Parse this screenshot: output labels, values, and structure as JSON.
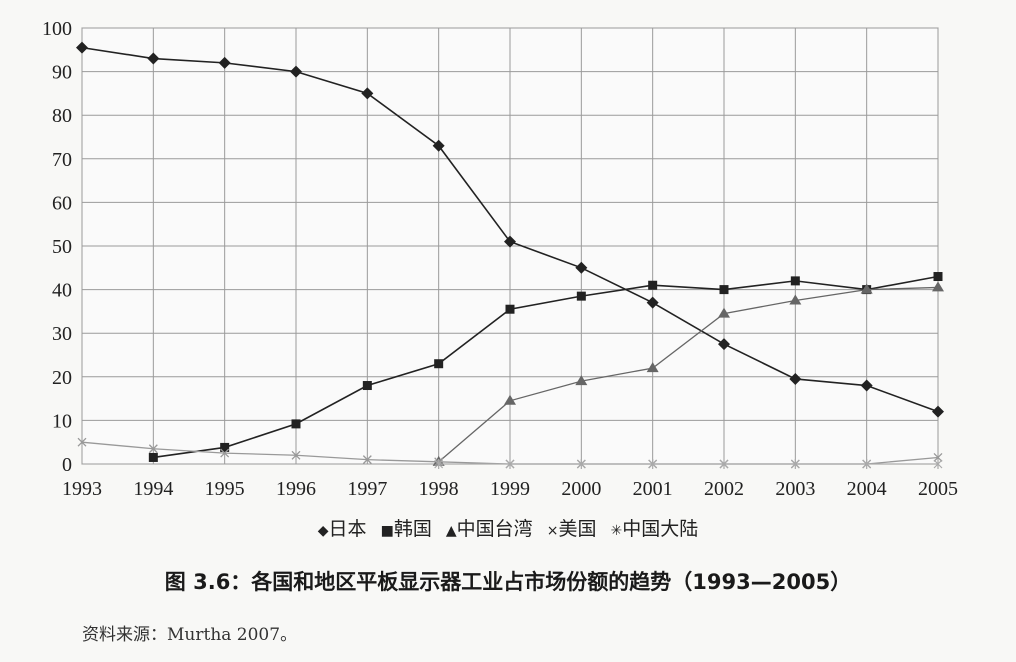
{
  "chart_data": {
    "type": "line",
    "categories": [
      "1993",
      "1994",
      "1995",
      "1996",
      "1997",
      "1998",
      "1999",
      "2000",
      "2001",
      "2002",
      "2003",
      "2004",
      "2005"
    ],
    "ylim": [
      0,
      100
    ],
    "yticks": [
      0,
      10,
      20,
      30,
      40,
      50,
      60,
      70,
      80,
      90,
      100
    ],
    "grid": true,
    "legend_position": "bottom",
    "series": [
      {
        "name": "日本",
        "marker": "diamond",
        "color": "#222222",
        "x": [
          1993,
          1994,
          1995,
          1996,
          1997,
          1998,
          1999,
          2000,
          2001,
          2002,
          2003,
          2004,
          2005
        ],
        "values": [
          95.5,
          93,
          92,
          90,
          85,
          73,
          51,
          45,
          37,
          27.5,
          19.5,
          18,
          12
        ]
      },
      {
        "name": "韩国",
        "marker": "square",
        "color": "#222222",
        "x": [
          1994,
          1995,
          1996,
          1997,
          1998,
          1999,
          2000,
          2001,
          2002,
          2003,
          2004,
          2005
        ],
        "values": [
          1.5,
          3.8,
          9.2,
          18,
          23,
          35.5,
          38.5,
          41,
          40,
          42,
          40,
          43
        ]
      },
      {
        "name": "中国台湾",
        "marker": "triangle",
        "color": "#666666",
        "x": [
          1998,
          1999,
          2000,
          2001,
          2002,
          2003,
          2004,
          2005
        ],
        "values": [
          0.5,
          14.5,
          19,
          22,
          34.5,
          37.5,
          40,
          40.5
        ]
      },
      {
        "name": "美国",
        "marker": "cross",
        "color": "#999999",
        "x": [
          1993,
          1994,
          1995,
          1996,
          1997,
          1998,
          1999,
          2000,
          2001,
          2002,
          2003,
          2004,
          2005
        ],
        "values": [
          5,
          3.5,
          2.5,
          2,
          1,
          0.5,
          0,
          0,
          0,
          0,
          0,
          0,
          1.5
        ]
      },
      {
        "name": "中国大陆",
        "marker": "star",
        "color": "#aaaaaa",
        "x": [
          1998,
          1999,
          2000,
          2001,
          2002,
          2003,
          2004,
          2005
        ],
        "values": [
          0,
          0,
          0,
          0,
          0,
          0,
          0,
          0
        ]
      }
    ]
  },
  "legend": {
    "items": [
      {
        "marker": "◆",
        "label": "日本"
      },
      {
        "marker": "■",
        "label": "韩国"
      },
      {
        "marker": "▲",
        "label": "中国台湾"
      },
      {
        "marker": "×",
        "label": "美国"
      },
      {
        "marker": "✳",
        "label": "中国大陆"
      }
    ]
  },
  "caption": "图 3.6：各国和地区平板显示器工业占市场份额的趋势（1993—2005）",
  "source": "资料来源：Murtha 2007。"
}
